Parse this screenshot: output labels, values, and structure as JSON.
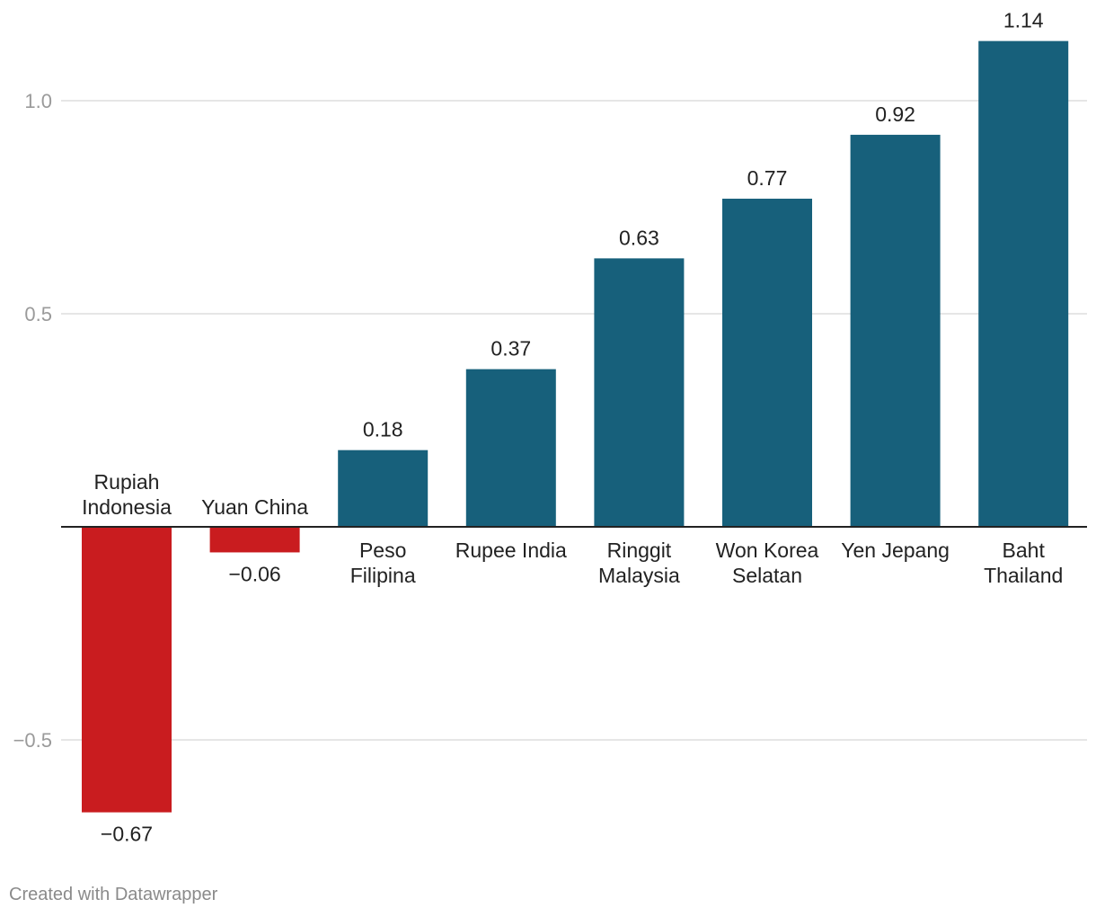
{
  "footer": "Created with Datawrapper",
  "chart_data": {
    "type": "bar",
    "categories": [
      [
        "Rupiah",
        "Indonesia"
      ],
      [
        "Yuan China"
      ],
      [
        "Peso",
        "Filipina"
      ],
      [
        "Rupee India"
      ],
      [
        "Ringgit",
        "Malaysia"
      ],
      [
        "Won Korea",
        "Selatan"
      ],
      [
        "Yen Jepang"
      ],
      [
        "Baht",
        "Thailand"
      ]
    ],
    "values": [
      -0.67,
      -0.06,
      0.18,
      0.37,
      0.63,
      0.77,
      0.92,
      1.14
    ],
    "value_labels": [
      "−0.67",
      "−0.06",
      "0.18",
      "0.37",
      "0.63",
      "0.77",
      "0.92",
      "1.14"
    ],
    "y_ticks": [
      {
        "value": 1.0,
        "label": "1.0"
      },
      {
        "value": 0.5,
        "label": "0.5"
      },
      {
        "value": -0.5,
        "label": "−0.5"
      }
    ],
    "ylim": [
      -0.75,
      1.25
    ],
    "grid": true,
    "colors": {
      "positive": "#17607b",
      "negative": "#c91c1f"
    }
  }
}
